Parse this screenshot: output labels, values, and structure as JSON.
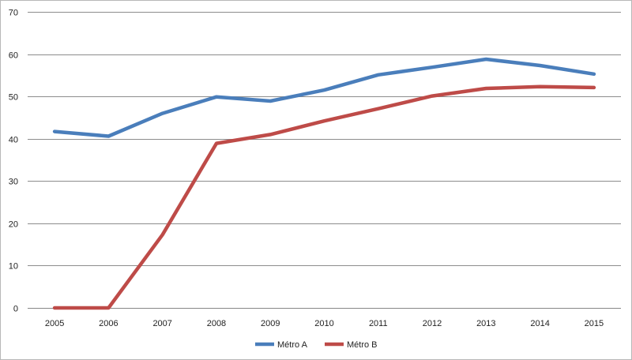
{
  "chart_data": {
    "type": "line",
    "title": "",
    "xlabel": "",
    "ylabel": "",
    "x": [
      "2005",
      "2006",
      "2007",
      "2008",
      "2009",
      "2010",
      "2011",
      "2012",
      "2013",
      "2014",
      "2015"
    ],
    "ylim": [
      0,
      70
    ],
    "yticks": [
      0,
      10,
      20,
      30,
      40,
      50,
      60,
      70
    ],
    "grid": "horizontal",
    "legend_position": "bottom",
    "series": [
      {
        "name": "Métro A",
        "color": "#4a7ebb",
        "values": [
          41.7,
          40.6,
          46.0,
          49.9,
          48.9,
          51.5,
          55.1,
          56.9,
          58.8,
          57.3,
          55.3
        ]
      },
      {
        "name": "Métro B",
        "color": "#be4b48",
        "values": [
          0,
          0,
          17.3,
          38.9,
          41.0,
          44.2,
          47.1,
          50.1,
          51.9,
          52.3,
          52.1
        ]
      }
    ]
  }
}
